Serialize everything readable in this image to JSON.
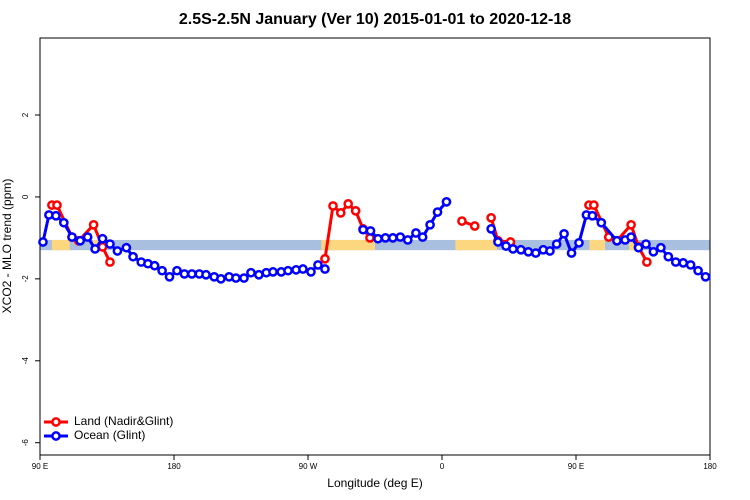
{
  "chart_data": {
    "type": "line",
    "title": "2.5S-2.5N January (Ver 10)   2015-01-01 to 2020-12-18",
    "x_label": "Longitude (deg E)",
    "y_label": "XCO2 - MLO trend (ppm)",
    "xlim": [
      90,
      540
    ],
    "ylim": [
      -6.3,
      3.88
    ],
    "xticks": [
      {
        "value": 90,
        "label": "90 E"
      },
      180,
      {
        "value": 270,
        "label": "90 W"
      },
      {
        "value": 360,
        "label": "0"
      },
      {
        "value": 450,
        "label": "90 E"
      },
      {
        "value": 540,
        "label": "180"
      }
    ],
    "yticks": [
      -6,
      -4,
      -2,
      0,
      2
    ],
    "legend_position": "bottom-left",
    "band": {
      "ylim": [
        -1.3,
        -1.05
      ],
      "color": "#a9bfe0"
    },
    "land_segments": {
      "color": "#fcd77f",
      "ranges": [
        [
          98,
          110
        ],
        [
          125.6,
          130
        ],
        [
          279,
          315
        ],
        [
          369,
          397
        ],
        [
          459,
          469.5
        ],
        [
          485.6,
          490
        ]
      ]
    },
    "series": [
      {
        "name": "Land (Nadir&Glint)",
        "color": "#ff0000",
        "x": [
          98,
          101.4,
          111.5,
          116,
          126,
          132,
          137,
          null,
          281.4,
          286.8,
          292,
          297,
          302,
          307,
          311.6,
          null,
          373.4,
          382,
          null,
          393,
          397.6,
          406,
          null,
          458.7,
          462,
          472,
          477.5,
          487,
          492,
          497.6
        ],
        "values": [
          -0.2,
          -0.2,
          -0.98,
          -1.07,
          -0.68,
          -1.22,
          -1.59,
          null,
          -1.51,
          -0.22,
          -0.39,
          -0.17,
          -0.34,
          -0.78,
          -1.0,
          null,
          -0.59,
          -0.71,
          null,
          -0.51,
          -1.07,
          -1.1,
          null,
          -0.2,
          -0.2,
          -0.98,
          -1.07,
          -0.68,
          -1.22,
          -1.59
        ]
      },
      {
        "name": "Ocean (Glint)",
        "color": "#0000ff",
        "x": [
          92,
          96,
          100.7,
          106,
          111.5,
          117,
          122,
          127,
          132,
          137,
          142,
          148,
          152.5,
          158,
          162.5,
          167,
          172,
          177,
          182,
          187,
          192,
          197,
          201.5,
          207,
          211.5,
          217,
          221.6,
          227,
          231.7,
          237,
          242,
          246.5,
          252,
          256.6,
          262,
          266.6,
          272,
          276.7,
          281.4,
          null,
          307,
          312,
          317,
          322,
          327,
          332,
          337,
          342.5,
          347,
          352,
          357,
          363,
          null,
          393,
          397.6,
          403,
          407.7,
          413,
          418,
          423,
          428,
          432.5,
          437,
          442,
          447,
          452,
          457,
          461,
          467,
          477.5,
          483,
          487,
          492,
          497,
          502,
          507,
          512,
          517,
          522,
          527,
          532,
          537
        ],
        "values": [
          -1.1,
          -0.44,
          -0.46,
          -0.63,
          -0.98,
          -1.07,
          -0.98,
          -1.27,
          -1.02,
          -1.15,
          -1.32,
          -1.24,
          -1.46,
          -1.59,
          -1.63,
          -1.68,
          -1.8,
          -1.95,
          -1.8,
          -1.88,
          -1.88,
          -1.88,
          -1.9,
          -1.95,
          -2.0,
          -1.95,
          -1.98,
          -1.98,
          -1.85,
          -1.9,
          -1.85,
          -1.83,
          -1.83,
          -1.8,
          -1.78,
          -1.76,
          -1.83,
          -1.66,
          -1.76,
          null,
          -0.8,
          -0.83,
          -1.02,
          -1.0,
          -1.0,
          -0.98,
          -1.05,
          -0.88,
          -0.98,
          -0.68,
          -0.37,
          -0.12,
          null,
          -0.78,
          -1.1,
          -1.2,
          -1.27,
          -1.29,
          -1.34,
          -1.37,
          -1.29,
          -1.32,
          -1.15,
          -0.9,
          -1.37,
          -1.12,
          -0.44,
          -0.46,
          -0.63,
          -1.07,
          -1.05,
          -0.98,
          -1.24,
          -1.15,
          -1.34,
          -1.24,
          -1.46,
          -1.59,
          -1.61,
          -1.66,
          -1.8,
          -1.95
        ]
      }
    ]
  }
}
